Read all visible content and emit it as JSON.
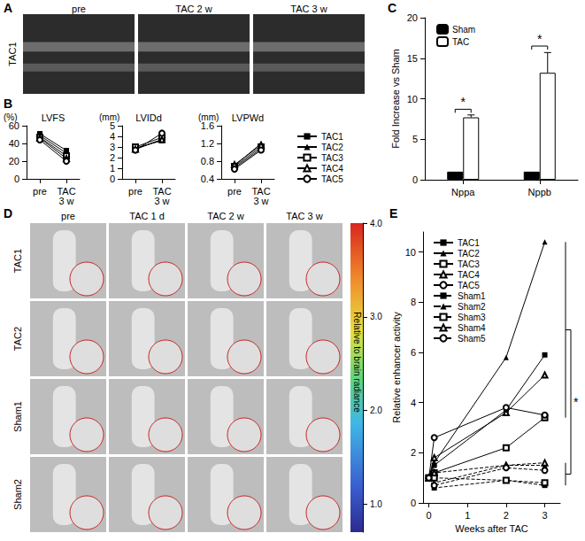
{
  "chart_data": [
    {
      "panel": "B",
      "type": "line",
      "title": "LVFS",
      "y_label": "(%)",
      "categories": [
        "pre",
        "TAC 3 w"
      ],
      "ylim": [
        0,
        60
      ],
      "yticks": [
        0,
        20,
        40,
        60
      ],
      "series": [
        {
          "name": "TAC1",
          "color": "#000000",
          "marker": "square",
          "values": [
            51,
            32
          ]
        },
        {
          "name": "TAC2",
          "color": "#000000",
          "marker": "triangle",
          "values": [
            49,
            29
          ]
        },
        {
          "name": "TAC3",
          "color": "#000000",
          "marker": "square-open",
          "values": [
            47,
            26
          ]
        },
        {
          "name": "TAC4",
          "color": "#000000",
          "marker": "triangle-open",
          "values": [
            46,
            23
          ]
        },
        {
          "name": "TAC5",
          "color": "#000000",
          "marker": "circle-open",
          "values": [
            44,
            20
          ]
        }
      ]
    },
    {
      "panel": "B",
      "type": "line",
      "title": "LVIDd",
      "y_label": "(mm)",
      "categories": [
        "pre",
        "TAC 3 w"
      ],
      "ylim": [
        0,
        5
      ],
      "yticks": [
        0,
        1,
        2,
        3,
        4,
        5
      ],
      "series": [
        {
          "name": "TAC1",
          "color": "#000000",
          "marker": "square",
          "values": [
            2.9,
            3.6
          ]
        },
        {
          "name": "TAC2",
          "color": "#000000",
          "marker": "triangle",
          "values": [
            2.8,
            3.7
          ]
        },
        {
          "name": "TAC3",
          "color": "#000000",
          "marker": "square-open",
          "values": [
            3.0,
            3.9
          ]
        },
        {
          "name": "TAC4",
          "color": "#000000",
          "marker": "triangle-open",
          "values": [
            2.8,
            3.7
          ]
        },
        {
          "name": "TAC5",
          "color": "#000000",
          "marker": "circle-open",
          "values": [
            2.7,
            4.3
          ]
        }
      ]
    },
    {
      "panel": "B",
      "type": "line",
      "title": "LVPWd",
      "y_label": "(mm)",
      "categories": [
        "pre",
        "TAC 3 w"
      ],
      "ylim": [
        0.4,
        1.6
      ],
      "yticks": [
        0.4,
        0.8,
        1.2,
        1.6
      ],
      "legend": "right",
      "series": [
        {
          "name": "TAC1",
          "color": "#000000",
          "marker": "square",
          "values": [
            0.65,
            1.08
          ]
        },
        {
          "name": "TAC2",
          "color": "#000000",
          "marker": "triangle",
          "values": [
            0.7,
            1.2
          ]
        },
        {
          "name": "TAC3",
          "color": "#000000",
          "marker": "square-open",
          "values": [
            0.68,
            1.12
          ]
        },
        {
          "name": "TAC4",
          "color": "#000000",
          "marker": "triangle-open",
          "values": [
            0.72,
            1.16
          ]
        },
        {
          "name": "TAC5",
          "color": "#000000",
          "marker": "circle-open",
          "values": [
            0.62,
            1.05
          ]
        }
      ]
    },
    {
      "panel": "C",
      "type": "bar",
      "y_label": "Fold Increase vs Sham",
      "categories": [
        "Nppa",
        "Nppb"
      ],
      "ylim": [
        0,
        20
      ],
      "yticks": [
        0,
        5,
        10,
        15,
        20
      ],
      "legend": "upper left",
      "series": [
        {
          "name": "Sham",
          "color": "#000000",
          "values": [
            1,
            1
          ]
        },
        {
          "name": "TAC",
          "color": "#ffffff",
          "values": [
            7.7,
            13.2
          ],
          "errors": [
            0.3,
            2.5
          ]
        }
      ],
      "annotations": [
        {
          "text": "*",
          "category": "Nppa",
          "y": 8.7
        },
        {
          "text": "*",
          "category": "Nppb",
          "y": 16.5
        }
      ]
    },
    {
      "panel": "E",
      "type": "line",
      "x_label": "Weeks after TAC",
      "y_label": "Relative enhancer activity",
      "x": [
        0,
        0.14,
        2,
        3
      ],
      "xlim": [
        -0.15,
        3.4
      ],
      "xticks": [
        0,
        1,
        2,
        3
      ],
      "ylim": [
        0,
        10.8
      ],
      "yticks": [
        0,
        2,
        4,
        6,
        8,
        10
      ],
      "legend": "upper left",
      "series": [
        {
          "name": "TAC1",
          "color": "#000000",
          "marker": "square",
          "line_style": "solid",
          "values": [
            1.0,
            1.5,
            3.7,
            5.9
          ]
        },
        {
          "name": "TAC2",
          "color": "#000000",
          "marker": "triangle",
          "line_style": "solid",
          "values": [
            1.0,
            1.6,
            5.8,
            10.4
          ]
        },
        {
          "name": "TAC3",
          "color": "#000000",
          "marker": "square-open",
          "line_style": "solid",
          "values": [
            1.0,
            1.2,
            2.2,
            3.4
          ]
        },
        {
          "name": "TAC4",
          "color": "#000000",
          "marker": "triangle-open",
          "line_style": "solid",
          "values": [
            1.0,
            1.8,
            3.6,
            5.1
          ]
        },
        {
          "name": "TAC5",
          "color": "#000000",
          "marker": "circle-open",
          "line_style": "solid",
          "values": [
            1.0,
            2.6,
            3.8,
            3.5
          ]
        },
        {
          "name": "Sham1",
          "color": "#000000",
          "marker": "square",
          "line_style": "dashed",
          "values": [
            1.0,
            0.6,
            0.9,
            0.7
          ]
        },
        {
          "name": "Sham2",
          "color": "#000000",
          "marker": "triangle",
          "line_style": "dashed",
          "values": [
            1.0,
            0.8,
            1.5,
            1.5
          ]
        },
        {
          "name": "Sham3",
          "color": "#000000",
          "marker": "square-open",
          "line_style": "dashed",
          "values": [
            1.0,
            1.0,
            0.9,
            0.8
          ]
        },
        {
          "name": "Sham4",
          "color": "#000000",
          "marker": "triangle-open",
          "line_style": "dashed",
          "values": [
            1.0,
            1.2,
            1.5,
            1.6
          ]
        },
        {
          "name": "Sham5",
          "color": "#000000",
          "marker": "circle-open",
          "line_style": "dashed",
          "values": [
            1.0,
            0.7,
            1.4,
            1.3
          ]
        }
      ],
      "annotations": [
        {
          "text": "*"
        }
      ]
    }
  ],
  "image_panels": [
    {
      "panel": "A",
      "columns": [
        "pre",
        "TAC 2 w",
        "TAC 3 w"
      ],
      "rows": [
        "TAC1"
      ]
    },
    {
      "panel": "D",
      "columns": [
        "pre",
        "TAC 1 d",
        "TAC 2 w",
        "TAC 3 w"
      ],
      "rows": [
        "TAC1",
        "TAC2",
        "Sham1",
        "Sham2"
      ],
      "colorbar": {
        "title": "Relative to brain radiance",
        "range": [
          0.7,
          4.0
        ],
        "ticks": [
          {
            "value": 1,
            "label": "1.0"
          },
          {
            "value": 2,
            "label": "2.0"
          },
          {
            "value": 3,
            "label": "3.0"
          },
          {
            "value": 4,
            "label": "4.0"
          }
        ]
      }
    }
  ]
}
